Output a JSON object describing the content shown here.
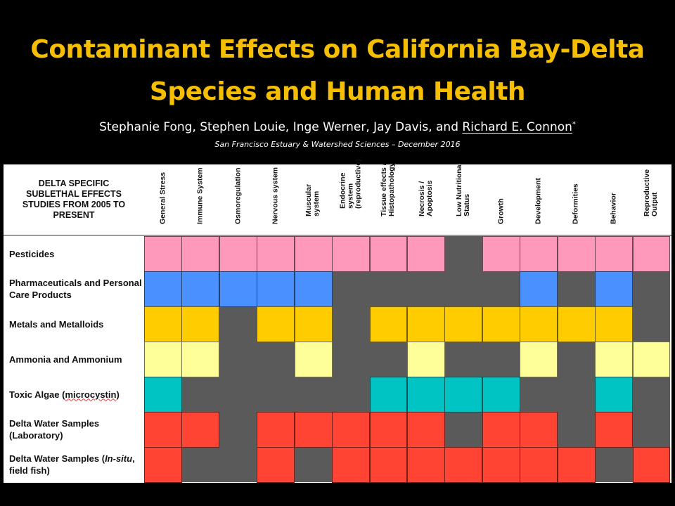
{
  "slide": {
    "title_line1": "Contaminant Effects on California Bay-Delta",
    "title_line2": "Species and Human Health",
    "authors_plain": "Stephanie Fong, Stephen Louie, Inge Werner, Jay Davis, and ",
    "authors_underlined": "Richard E. Connon",
    "authors_mark": "*",
    "journal": "San Francisco Estuary  & Watershed Sciences – December 2016"
  },
  "table": {
    "corner_header": "DELTA SPECIFIC SUBLETHAL EFFECTS STUDIES FROM  2005 TO PRESENT",
    "columns": [
      "General Stress",
      "Immune System",
      "Osmoregulation",
      "Nervous system",
      "Muscular\nsystem",
      "Endocrine\nsystem\n(reproductive)",
      "Tissue effects /\nHistopathology",
      "Necrosis /\nApoptosis",
      "Low Nutritional\nStatus",
      "Growth",
      "Development",
      "Deformities",
      "Behavior",
      "Reproductive\nOutput"
    ],
    "rows": [
      {
        "label": "Pesticides",
        "color": "#ff99bb",
        "effects": [
          1,
          1,
          1,
          1,
          1,
          1,
          1,
          1,
          0,
          1,
          1,
          1,
          1,
          1
        ]
      },
      {
        "label": "Pharmaceuticals and Personal Care Products",
        "color": "#4a90ff",
        "effects": [
          1,
          1,
          1,
          1,
          1,
          0,
          0,
          0,
          0,
          0,
          1,
          0,
          1,
          0
        ]
      },
      {
        "label": "Metals and Metalloids",
        "color": "#ffcc00",
        "effects": [
          1,
          1,
          0,
          1,
          1,
          0,
          1,
          1,
          1,
          1,
          1,
          1,
          1,
          0
        ]
      },
      {
        "label": "Ammonia and Ammonium",
        "color": "#ffff99",
        "effects": [
          1,
          1,
          0,
          0,
          1,
          0,
          0,
          1,
          0,
          0,
          1,
          0,
          1,
          1
        ]
      },
      {
        "label_parts": [
          "Toxic Algae (",
          "microcystin",
          ")"
        ],
        "label": "Toxic Algae (microcystin)",
        "color": "#00c4c4",
        "effects": [
          1,
          0,
          0,
          0,
          0,
          0,
          1,
          1,
          1,
          1,
          0,
          0,
          1,
          0
        ]
      },
      {
        "label": "Delta Water Samples (Laboratory)",
        "color": "#ff4433",
        "effects": [
          1,
          1,
          0,
          1,
          1,
          1,
          1,
          1,
          0,
          1,
          1,
          0,
          1,
          0
        ]
      },
      {
        "label_parts": [
          "Delta Water Samples (",
          "In-situ",
          ", field fish)"
        ],
        "label": "Delta Water Samples (In-situ, field fish)",
        "color": "#ff4433",
        "effects": [
          1,
          0,
          0,
          1,
          0,
          1,
          1,
          1,
          1,
          1,
          1,
          1,
          0,
          1
        ]
      }
    ],
    "no_effect_color": "#5a5a5a"
  }
}
